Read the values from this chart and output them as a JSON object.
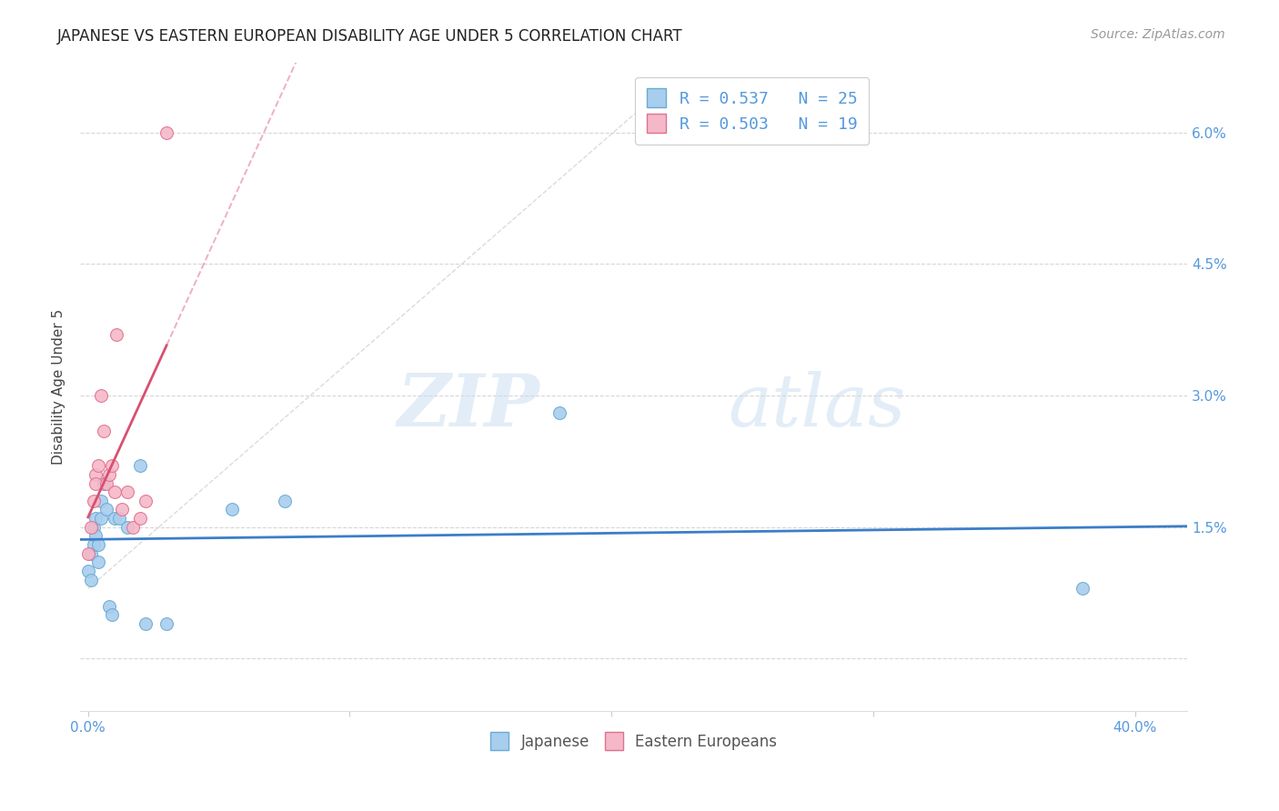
{
  "title": "JAPANESE VS EASTERN EUROPEAN DISABILITY AGE UNDER 5 CORRELATION CHART",
  "source": "Source: ZipAtlas.com",
  "ylabel": "Disability Age Under 5",
  "x_ticks": [
    0.0,
    0.1,
    0.2,
    0.3,
    0.4
  ],
  "x_tick_labels": [
    "0.0%",
    "",
    "",
    "",
    "40.0%"
  ],
  "y_ticks": [
    0.0,
    0.015,
    0.03,
    0.045,
    0.06
  ],
  "y_tick_labels_right": [
    "",
    "1.5%",
    "3.0%",
    "4.5%",
    "6.0%"
  ],
  "xlim": [
    -0.003,
    0.42
  ],
  "ylim": [
    -0.006,
    0.068
  ],
  "legend_line1": "R = 0.537   N = 25",
  "legend_line2": "R = 0.503   N = 19",
  "japanese_x": [
    0.0,
    0.001,
    0.001,
    0.002,
    0.002,
    0.003,
    0.003,
    0.004,
    0.004,
    0.005,
    0.005,
    0.006,
    0.007,
    0.008,
    0.009,
    0.01,
    0.012,
    0.015,
    0.02,
    0.022,
    0.03,
    0.055,
    0.075,
    0.18,
    0.38
  ],
  "japanese_y": [
    0.01,
    0.012,
    0.009,
    0.013,
    0.015,
    0.016,
    0.014,
    0.011,
    0.013,
    0.016,
    0.018,
    0.02,
    0.017,
    0.006,
    0.005,
    0.016,
    0.016,
    0.015,
    0.022,
    0.004,
    0.004,
    0.017,
    0.018,
    0.028,
    0.008
  ],
  "eastern_x": [
    0.0,
    0.001,
    0.002,
    0.003,
    0.003,
    0.004,
    0.005,
    0.006,
    0.007,
    0.008,
    0.009,
    0.01,
    0.011,
    0.013,
    0.015,
    0.017,
    0.02,
    0.022,
    0.03
  ],
  "eastern_y": [
    0.012,
    0.015,
    0.018,
    0.021,
    0.02,
    0.022,
    0.03,
    0.026,
    0.02,
    0.021,
    0.022,
    0.019,
    0.037,
    0.017,
    0.019,
    0.015,
    0.016,
    0.018,
    0.06
  ],
  "blue_color": "#A8CEED",
  "blue_edge_color": "#6AAAD4",
  "pink_color": "#F5B8C8",
  "pink_edge_color": "#E07090",
  "blue_line_color": "#3B7EC8",
  "pink_line_color": "#D95070",
  "diag_color": "#CCCCCC",
  "grid_color": "#CCCCCC",
  "watermark_zip": "ZIP",
  "watermark_atlas": "atlas",
  "marker_size": 100,
  "background_color": "#FFFFFF",
  "title_fontsize": 12,
  "source_fontsize": 10,
  "tick_fontsize": 11,
  "ylabel_fontsize": 11
}
